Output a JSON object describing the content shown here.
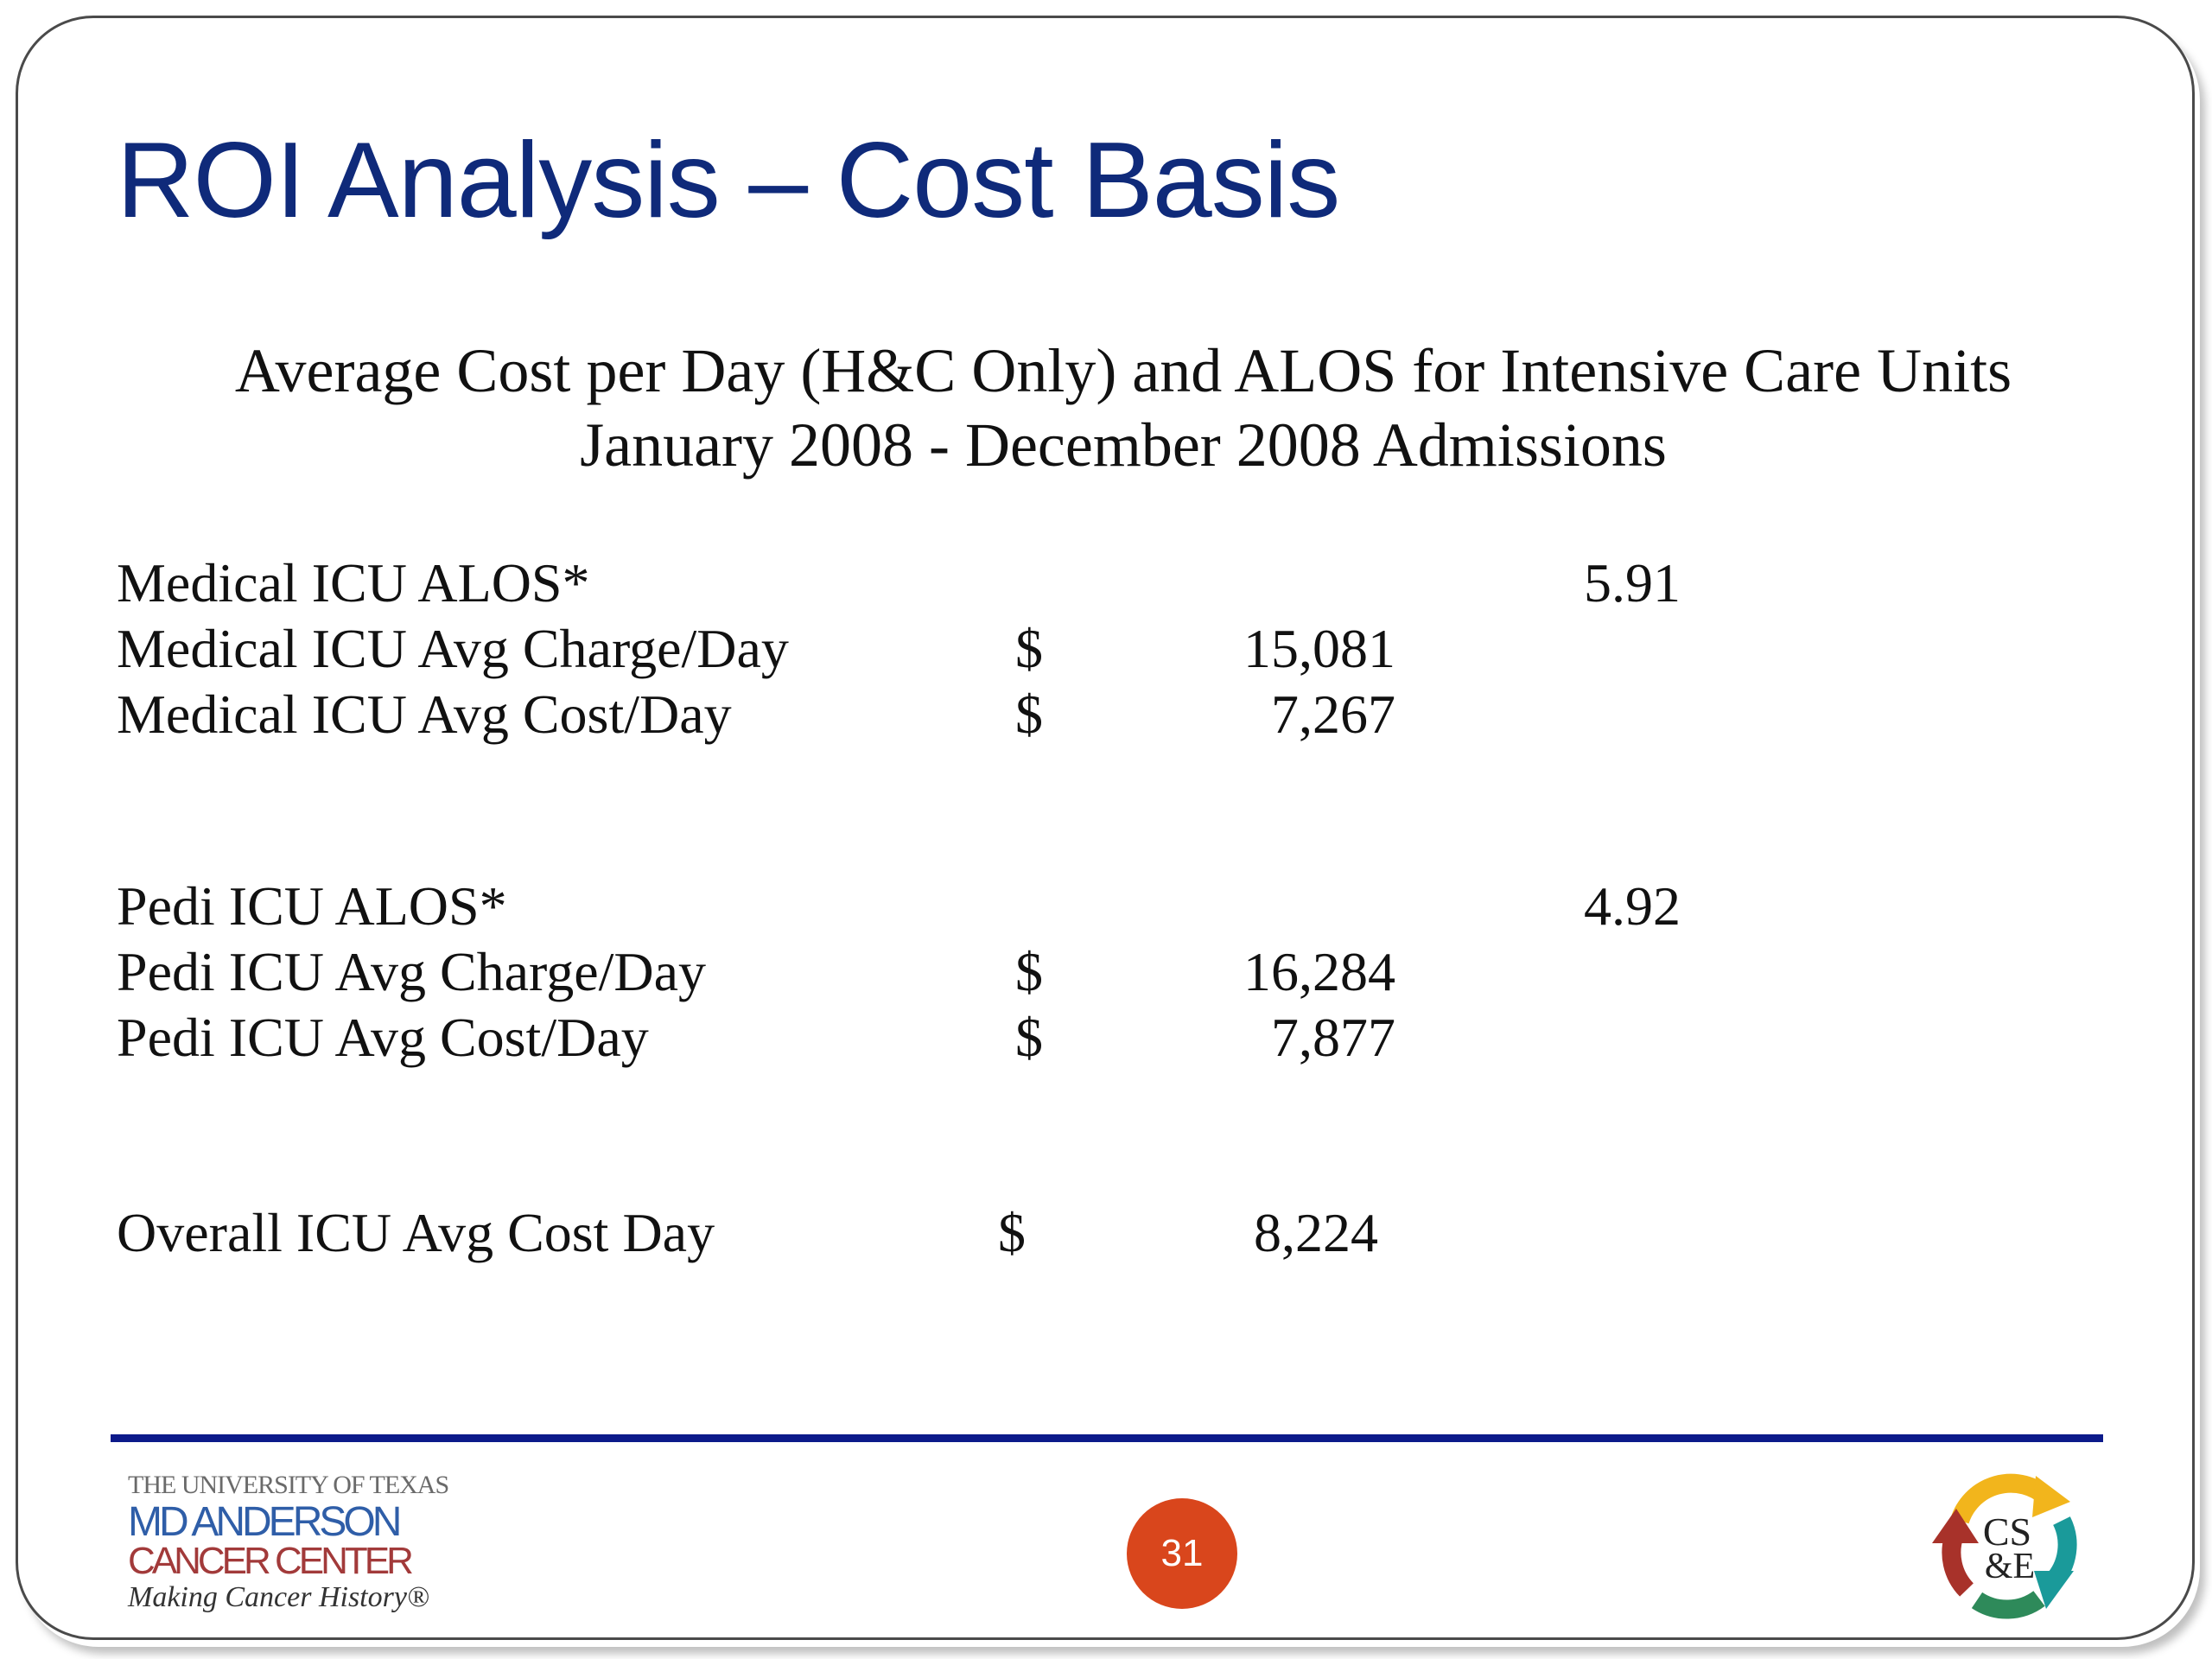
{
  "slide": {
    "title": "ROI Analysis – Cost Basis",
    "subtitle_line1": "Average Cost per Day (H&C Only) and ALOS for Intensive Care Units",
    "subtitle_line2": "January 2008 - December 2008 Admissions",
    "rows": [
      {
        "label": "Medical ICU ALOS*",
        "currency": "",
        "amount": "",
        "alos": "5.91"
      },
      {
        "label": "Medical ICU Avg Charge/Day",
        "currency": "$",
        "amount": "15,081",
        "alos": ""
      },
      {
        "label": "Medical ICU Avg Cost/Day",
        "currency": "$",
        "amount": "7,267",
        "alos": ""
      },
      {
        "label": "Pedi ICU ALOS*",
        "currency": "",
        "amount": "",
        "alos": "4.92"
      },
      {
        "label": "Pedi ICU Avg Charge/Day",
        "currency": "$",
        "amount": "16,284",
        "alos": ""
      },
      {
        "label": "Pedi ICU Avg Cost/Day",
        "currency": "$",
        "amount": "7,877",
        "alos": ""
      },
      {
        "label": "Overall ICU Avg Cost Day",
        "currency": "$",
        "amount": "8,224",
        "alos": ""
      }
    ],
    "page_number": "31"
  },
  "footer": {
    "logo_left": {
      "line1": "THE UNIVERSITY OF TEXAS",
      "line2": "MD ANDERSON",
      "line3": "CANCER CENTER",
      "line4": "Making Cancer History®"
    },
    "logo_right": {
      "monogram_top": "CS",
      "monogram_bottom": "&E"
    }
  },
  "colors": {
    "title": "#0f2a7a",
    "rule": "#0c1a8a",
    "page_badge": "#d9461c",
    "arrow_yellow": "#f2b51c",
    "arrow_teal": "#1a9a9a",
    "arrow_green": "#2e8a5a",
    "arrow_red": "#a8322a"
  }
}
